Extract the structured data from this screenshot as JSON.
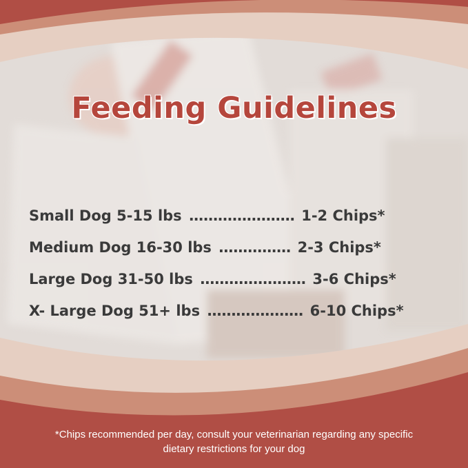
{
  "title": "Feeding Guidelines",
  "rows": [
    {
      "label": "Small Dog 5-15 lbs",
      "dots": "......................",
      "value": "1-2 Chips*"
    },
    {
      "label": "Medium Dog 16-30 lbs",
      "dots": "...............",
      "value": "2-3 Chips*"
    },
    {
      "label": "Large Dog 31-50 lbs",
      "dots": "......................",
      "value": "3-6 Chips*"
    },
    {
      "label": "X- Large Dog 51+ lbs",
      "dots": "....................",
      "value": "6-10 Chips*"
    }
  ],
  "footer": {
    "line1": "*Chips recommended per day, consult your veterinarian regarding any specific",
    "line2": "dietary restrictions for your dog"
  },
  "colors": {
    "brand_red": "#b04e45",
    "title": "#b5463c",
    "salmon": "#cc8e78",
    "pale": "#e6cfc2"
  }
}
